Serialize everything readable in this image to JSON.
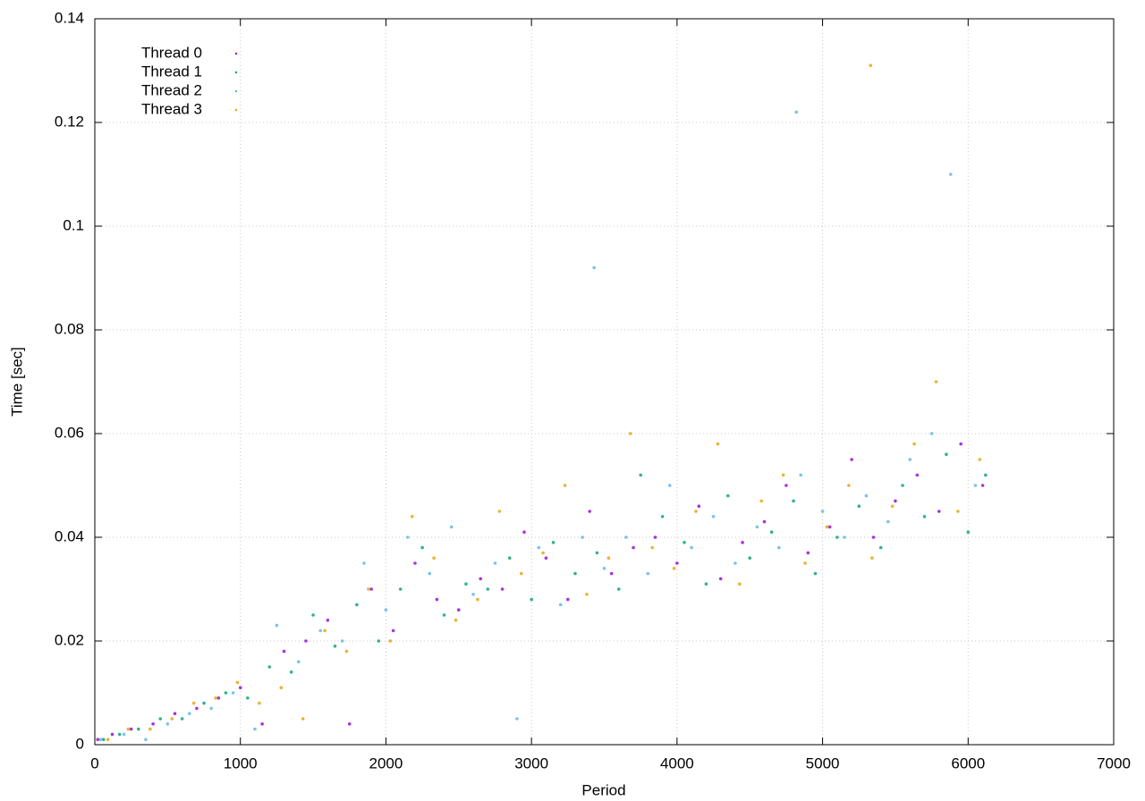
{
  "chart_data": {
    "type": "scatter",
    "x_label": "Period",
    "y_label": "Time [sec]",
    "xlim": [
      0,
      7000
    ],
    "xticks": [
      0,
      1000,
      2000,
      3000,
      4000,
      5000,
      6000,
      7000
    ],
    "ylim": [
      0,
      0.14
    ],
    "yticks": [
      0,
      0.02,
      0.04,
      0.06,
      0.08,
      0.1,
      0.12,
      0.14
    ],
    "grid": true,
    "legend": "top-left",
    "series": [
      {
        "name": "Thread 0",
        "color": "#9400d3",
        "x": [
          20,
          120,
          250,
          400,
          550,
          700,
          850,
          1000,
          1150,
          1300,
          1450,
          1600,
          1750,
          1900,
          2050,
          2200,
          2350,
          2500,
          2650,
          2800,
          2950,
          3100,
          3250,
          3400,
          3550,
          3700,
          3850,
          4000,
          4150,
          4300,
          4450,
          4600,
          4750,
          4900,
          5050,
          5200,
          5350,
          5500,
          5650,
          5800,
          5950,
          6100
        ],
        "values": [
          0.001,
          0.002,
          0.003,
          0.004,
          0.006,
          0.007,
          0.009,
          0.011,
          0.004,
          0.018,
          0.02,
          0.024,
          0.004,
          0.03,
          0.022,
          0.035,
          0.028,
          0.026,
          0.032,
          0.03,
          0.041,
          0.036,
          0.028,
          0.045,
          0.033,
          0.038,
          0.04,
          0.035,
          0.046,
          0.032,
          0.039,
          0.043,
          0.05,
          0.037,
          0.042,
          0.055,
          0.04,
          0.047,
          0.052,
          0.045,
          0.058,
          0.05
        ]
      },
      {
        "name": "Thread 1",
        "color": "#009e73",
        "x": [
          60,
          170,
          300,
          450,
          600,
          750,
          900,
          1050,
          1200,
          1350,
          1500,
          1650,
          1800,
          1950,
          2100,
          2250,
          2400,
          2550,
          2700,
          2850,
          3000,
          3150,
          3300,
          3450,
          3600,
          3750,
          3900,
          4050,
          4200,
          4350,
          4500,
          4650,
          4800,
          4950,
          5100,
          5250,
          5400,
          5550,
          5700,
          5850,
          6000,
          6120
        ],
        "values": [
          0.001,
          0.002,
          0.003,
          0.005,
          0.005,
          0.008,
          0.01,
          0.009,
          0.015,
          0.014,
          0.025,
          0.019,
          0.027,
          0.02,
          0.03,
          0.038,
          0.025,
          0.031,
          0.03,
          0.036,
          0.028,
          0.039,
          0.033,
          0.037,
          0.03,
          0.052,
          0.044,
          0.039,
          0.031,
          0.048,
          0.036,
          0.041,
          0.047,
          0.033,
          0.04,
          0.046,
          0.038,
          0.05,
          0.044,
          0.056,
          0.041,
          0.052
        ]
      },
      {
        "name": "Thread 2",
        "color": "#56b4e9",
        "x": [
          40,
          200,
          350,
          500,
          650,
          800,
          950,
          1100,
          1250,
          1400,
          1550,
          1700,
          1850,
          2000,
          2150,
          2300,
          2450,
          2600,
          2750,
          2900,
          3050,
          3200,
          3350,
          3430,
          3500,
          3650,
          3800,
          3950,
          4100,
          4250,
          4400,
          4550,
          4700,
          4820,
          4850,
          5000,
          5150,
          5300,
          5450,
          5600,
          5750,
          5880,
          6050
        ],
        "values": [
          0.001,
          0.002,
          0.001,
          0.004,
          0.006,
          0.007,
          0.01,
          0.003,
          0.023,
          0.016,
          0.022,
          0.02,
          0.035,
          0.026,
          0.04,
          0.033,
          0.042,
          0.029,
          0.035,
          0.005,
          0.038,
          0.027,
          0.04,
          0.092,
          0.034,
          0.04,
          0.033,
          0.05,
          0.038,
          0.044,
          0.035,
          0.042,
          0.038,
          0.122,
          0.052,
          0.045,
          0.04,
          0.048,
          0.043,
          0.055,
          0.06,
          0.11,
          0.05
        ]
      },
      {
        "name": "Thread 3",
        "color": "#e69f00",
        "x": [
          90,
          230,
          380,
          530,
          680,
          830,
          980,
          1130,
          1280,
          1430,
          1580,
          1730,
          1880,
          2030,
          2180,
          2330,
          2480,
          2630,
          2780,
          2930,
          3080,
          3230,
          3380,
          3530,
          3680,
          3830,
          3980,
          4130,
          4280,
          4430,
          4580,
          4730,
          4880,
          5030,
          5180,
          5330,
          5340,
          5480,
          5630,
          5780,
          5930,
          6080
        ],
        "values": [
          0.001,
          0.003,
          0.003,
          0.005,
          0.008,
          0.009,
          0.012,
          0.008,
          0.011,
          0.005,
          0.022,
          0.018,
          0.03,
          0.02,
          0.044,
          0.036,
          0.024,
          0.028,
          0.045,
          0.033,
          0.037,
          0.05,
          0.029,
          0.036,
          0.06,
          0.038,
          0.034,
          0.045,
          0.058,
          0.031,
          0.047,
          0.052,
          0.035,
          0.042,
          0.05,
          0.131,
          0.036,
          0.046,
          0.058,
          0.07,
          0.045,
          0.055
        ]
      }
    ]
  }
}
